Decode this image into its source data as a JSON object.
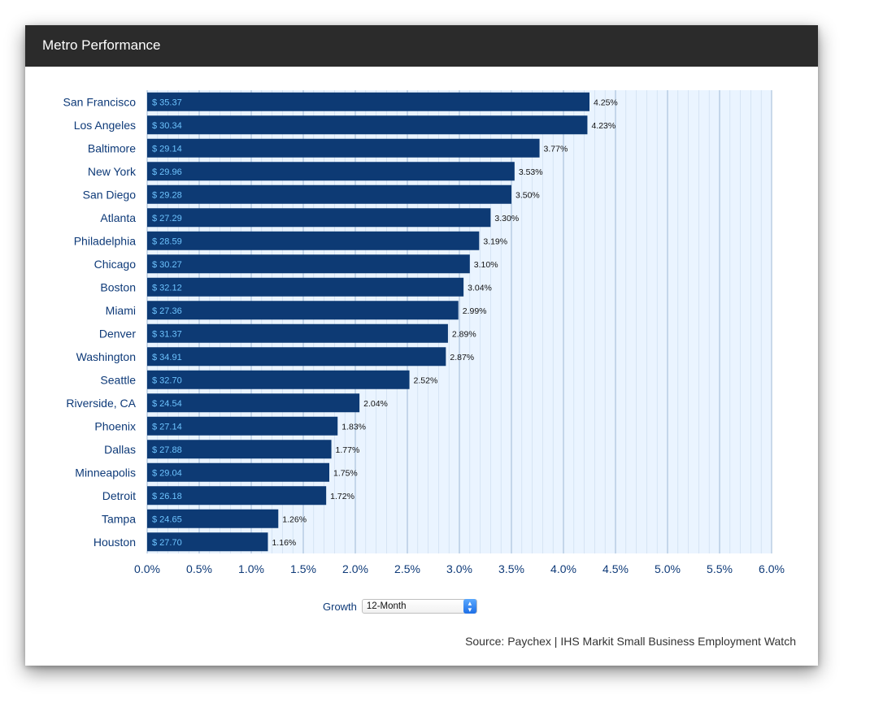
{
  "header": {
    "title": "Metro Performance"
  },
  "controls": {
    "growth_label": "Growth",
    "period_selected": "12-Month"
  },
  "source": "Source: Paychex | IHS Markit Small Business Employment Watch",
  "colors": {
    "bar": "#0d3a74",
    "header": "#2b2b2b",
    "grid_bg": "#eaf4ff",
    "grid_line": "#b9cfe6",
    "bar_text": "#6ec4ff"
  },
  "chart_data": {
    "type": "bar",
    "orientation": "horizontal",
    "categories": [
      "San Francisco",
      "Los Angeles",
      "Baltimore",
      "New York",
      "San Diego",
      "Atlanta",
      "Philadelphia",
      "Chicago",
      "Boston",
      "Miami",
      "Denver",
      "Washington",
      "Seattle",
      "Riverside, CA",
      "Phoenix",
      "Dallas",
      "Minneapolis",
      "Detroit",
      "Tampa",
      "Houston"
    ],
    "values": [
      4.25,
      4.23,
      3.77,
      3.53,
      3.5,
      3.3,
      3.19,
      3.1,
      3.04,
      2.99,
      2.89,
      2.87,
      2.52,
      2.04,
      1.83,
      1.77,
      1.75,
      1.72,
      1.26,
      1.16
    ],
    "value_labels": [
      "4.25%",
      "4.23%",
      "3.77%",
      "3.53%",
      "3.50%",
      "3.30%",
      "3.19%",
      "3.10%",
      "3.04%",
      "2.99%",
      "2.89%",
      "2.87%",
      "2.52%",
      "2.04%",
      "1.83%",
      "1.77%",
      "1.75%",
      "1.72%",
      "1.26%",
      "1.16%"
    ],
    "bar_labels": [
      "$ 35.37",
      "$ 30.34",
      "$ 29.14",
      "$ 29.96",
      "$ 29.28",
      "$ 27.29",
      "$ 28.59",
      "$ 30.27",
      "$ 32.12",
      "$ 27.36",
      "$ 31.37",
      "$ 34.91",
      "$ 32.70",
      "$ 24.54",
      "$ 27.14",
      "$ 27.88",
      "$ 29.04",
      "$ 26.18",
      "$ 24.65",
      "$ 27.70"
    ],
    "xlim": [
      0,
      6.0
    ],
    "xticks": [
      0,
      0.5,
      1.0,
      1.5,
      2.0,
      2.5,
      3.0,
      3.5,
      4.0,
      4.5,
      5.0,
      5.5,
      6.0
    ],
    "xtick_labels": [
      "0.0%",
      "0.5%",
      "1.0%",
      "1.5%",
      "2.0%",
      "2.5%",
      "3.0%",
      "3.5%",
      "4.0%",
      "4.5%",
      "5.0%",
      "5.5%",
      "6.0%"
    ],
    "grid": true,
    "legend": "none"
  }
}
